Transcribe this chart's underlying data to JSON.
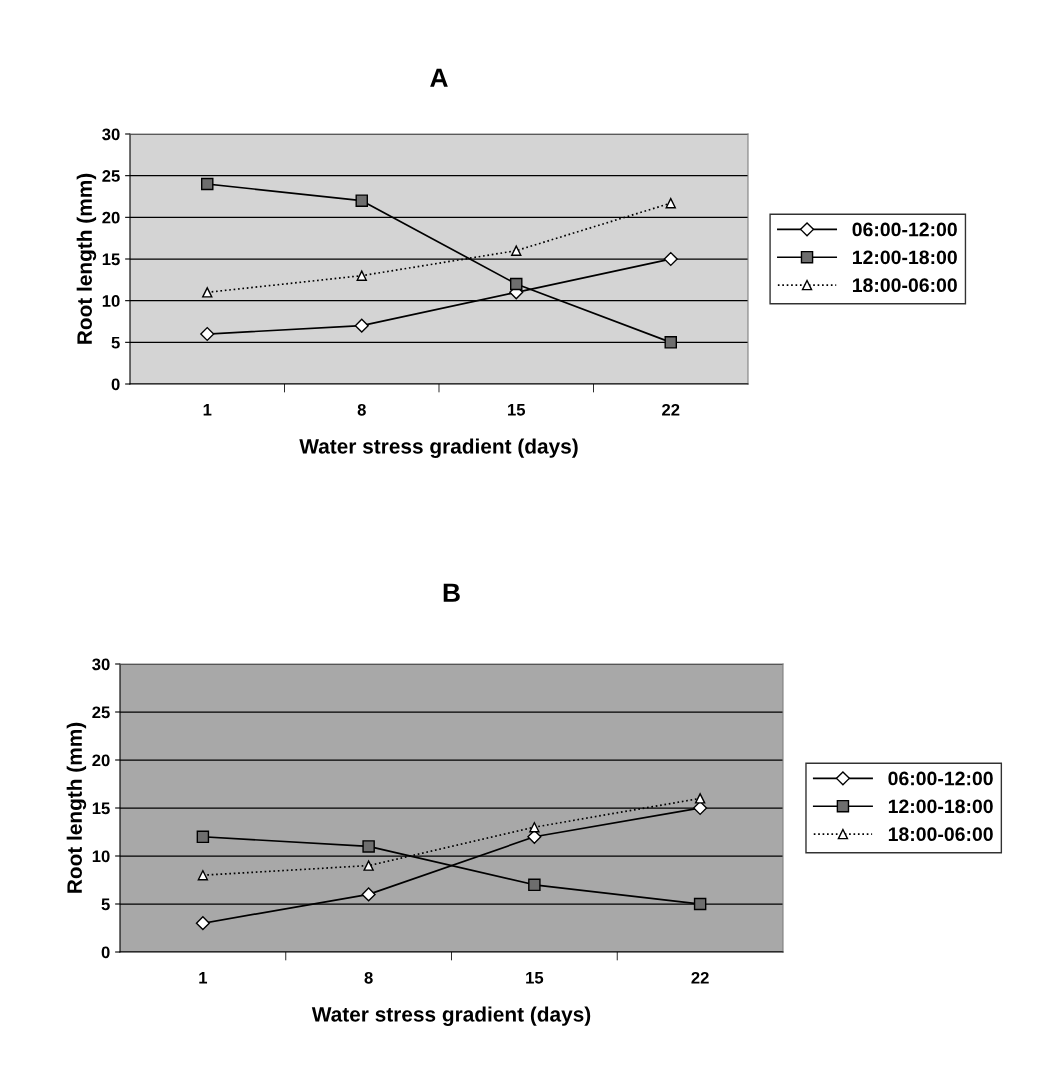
{
  "chart_data": [
    {
      "type": "line",
      "title": "A",
      "xlabel": "Water stress gradient (days)",
      "ylabel": "Root length (mm)",
      "categories": [
        "1",
        "8",
        "15",
        "22"
      ],
      "ylim": [
        0,
        30
      ],
      "yticks": [
        0,
        5,
        10,
        15,
        20,
        25,
        30
      ],
      "grid": "y",
      "legend": "right",
      "series": [
        {
          "name": "06:00-12:00",
          "color": "#000000",
          "marker": "diamond",
          "line_style": "solid",
          "values": [
            6,
            7,
            11,
            15
          ]
        },
        {
          "name": "12:00-18:00",
          "color": "#000000",
          "marker": "square",
          "line_style": "solid",
          "values": [
            24,
            22,
            12,
            5
          ]
        },
        {
          "name": "18:00-06:00",
          "color": "#000000",
          "marker": "triangle",
          "line_style": "dotted",
          "values": [
            11,
            13,
            16,
            21.7
          ]
        }
      ]
    },
    {
      "type": "line",
      "title": "B",
      "xlabel": "Water stress gradient (days)",
      "ylabel": "Root length (mm)",
      "categories": [
        "1",
        "8",
        "15",
        "22"
      ],
      "ylim": [
        0,
        30
      ],
      "yticks": [
        0,
        5,
        10,
        15,
        20,
        25,
        30
      ],
      "grid": "y",
      "legend": "right",
      "series": [
        {
          "name": "06:00-12:00",
          "color": "#000000",
          "marker": "diamond",
          "line_style": "solid",
          "values": [
            3,
            6,
            12,
            15
          ]
        },
        {
          "name": "12:00-18:00",
          "color": "#000000",
          "marker": "square",
          "line_style": "solid",
          "values": [
            12,
            11,
            7,
            5
          ]
        },
        {
          "name": "18:00-06:00",
          "color": "#000000",
          "marker": "triangle",
          "line_style": "dotted",
          "values": [
            8,
            9,
            13,
            16
          ]
        }
      ]
    }
  ]
}
